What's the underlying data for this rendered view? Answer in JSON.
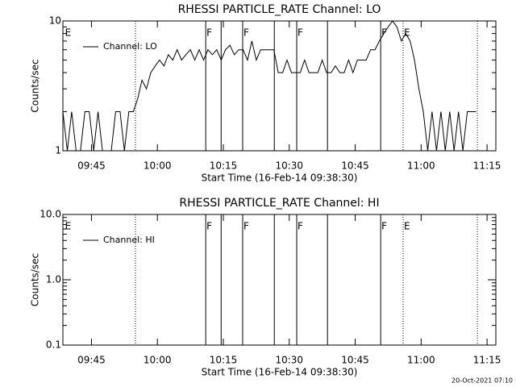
{
  "chart_data": [
    {
      "type": "line",
      "title": "RHESSI PARTICLE_RATE Channel: LO",
      "x_label": "Start Time (16-Feb-14 09:38:30)",
      "y_label": "Counts/sec",
      "log_y": true,
      "legend": "upper left",
      "xlim": [
        0,
        98.5
      ],
      "xticks": [
        {
          "value": 6.5,
          "label": "09:45"
        },
        {
          "value": 21.5,
          "label": "10:00"
        },
        {
          "value": 36.5,
          "label": "10:15"
        },
        {
          "value": 51.5,
          "label": "10:30"
        },
        {
          "value": 66.5,
          "label": "10:45"
        },
        {
          "value": 81.5,
          "label": "11:00"
        },
        {
          "value": 96.5,
          "label": "11:15"
        }
      ],
      "ylim": [
        1,
        10
      ],
      "yticks": [
        1,
        10
      ],
      "yminorticks": [
        2,
        3,
        4,
        5,
        6,
        7,
        8,
        9
      ],
      "lines": [
        {
          "x": 16.5,
          "style": "dotted"
        },
        {
          "x": 32.5,
          "style": "solid"
        },
        {
          "x": 36.0,
          "style": "solid"
        },
        {
          "x": 40.9,
          "style": "solid"
        },
        {
          "x": 48.1,
          "style": "solid"
        },
        {
          "x": 53.2,
          "style": "solid"
        },
        {
          "x": 60.2,
          "style": "solid"
        },
        {
          "x": 72.3,
          "style": "solid"
        },
        {
          "x": 77.4,
          "style": "dotted"
        },
        {
          "x": 94.3,
          "style": "dotted"
        }
      ],
      "flags": [
        {
          "x": 0.3,
          "label": "E"
        },
        {
          "x": 32.5,
          "label": "F"
        },
        {
          "x": 40.9,
          "label": "F"
        },
        {
          "x": 53.2,
          "label": "F"
        },
        {
          "x": 72.3,
          "label": "F"
        },
        {
          "x": 77.4,
          "label": "E"
        }
      ],
      "x": [
        0,
        1,
        2,
        3,
        4,
        5,
        6,
        7,
        8,
        9,
        10,
        11,
        12,
        13,
        14,
        15,
        16,
        17,
        18,
        19,
        20,
        21,
        22,
        23,
        24,
        25,
        26,
        27,
        28,
        29,
        30,
        31,
        32,
        33,
        34,
        35,
        36,
        37,
        38,
        39,
        40,
        41,
        42,
        43,
        44,
        45,
        46,
        47,
        48,
        49,
        50,
        51,
        52,
        53,
        54,
        55,
        56,
        57,
        58,
        59,
        60,
        61,
        62,
        63,
        64,
        65,
        66,
        67,
        68,
        69,
        70,
        71,
        72,
        73,
        74,
        75,
        76,
        77,
        78,
        79,
        80,
        81,
        82,
        83,
        84,
        85,
        86,
        87,
        88,
        89,
        90,
        91,
        92,
        93,
        94
      ],
      "series": [
        {
          "name": "Channel: LO",
          "color": "#000000",
          "values": [
            2,
            1,
            2,
            1,
            1,
            2,
            2,
            1,
            2,
            1,
            1,
            1,
            2,
            2,
            1,
            2,
            2,
            2.5,
            3.5,
            3,
            4,
            4.5,
            5,
            4.5,
            5.5,
            5,
            6,
            5,
            5.5,
            6,
            5,
            6,
            5,
            6,
            5.5,
            6,
            5,
            6,
            6.5,
            5.5,
            6,
            6,
            5,
            7,
            5,
            6,
            6,
            6,
            6,
            4,
            4,
            5,
            4,
            4,
            4,
            5,
            4,
            4,
            4,
            5,
            4,
            4,
            4.5,
            4,
            4,
            5,
            4,
            5,
            5,
            5,
            6,
            6,
            7,
            8,
            9,
            10,
            9,
            7,
            8,
            7,
            5,
            3,
            2,
            1,
            2,
            1,
            2,
            1,
            2,
            1,
            2,
            1,
            2,
            2,
            2
          ]
        }
      ]
    },
    {
      "type": "line",
      "title": "RHESSI PARTICLE_RATE Channel: HI",
      "x_label": "Start Time (16-Feb-14 09:38:30)",
      "y_label": "Counts/sec",
      "log_y": true,
      "legend": "upper left",
      "xlim": [
        0,
        98.5
      ],
      "xticks": [
        {
          "value": 6.5,
          "label": "09:45"
        },
        {
          "value": 21.5,
          "label": "10:00"
        },
        {
          "value": 36.5,
          "label": "10:15"
        },
        {
          "value": 51.5,
          "label": "10:30"
        },
        {
          "value": 66.5,
          "label": "10:45"
        },
        {
          "value": 81.5,
          "label": "11:00"
        },
        {
          "value": 96.5,
          "label": "11:15"
        }
      ],
      "ylim": [
        0.1,
        10
      ],
      "yticks": [
        0.1,
        {
          "value": 1,
          "label": "1.0"
        },
        {
          "value": 10,
          "label": "10.0"
        }
      ],
      "yminorticks": [
        0.2,
        0.3,
        0.4,
        0.5,
        0.6,
        0.7,
        0.8,
        0.9,
        2,
        3,
        4,
        5,
        6,
        7,
        8,
        9
      ],
      "lines": [
        {
          "x": 16.5,
          "style": "dotted"
        },
        {
          "x": 32.5,
          "style": "solid"
        },
        {
          "x": 36.0,
          "style": "solid"
        },
        {
          "x": 40.9,
          "style": "solid"
        },
        {
          "x": 48.1,
          "style": "solid"
        },
        {
          "x": 53.2,
          "style": "solid"
        },
        {
          "x": 60.2,
          "style": "solid"
        },
        {
          "x": 72.3,
          "style": "solid"
        },
        {
          "x": 77.4,
          "style": "dotted"
        },
        {
          "x": 94.3,
          "style": "dotted"
        }
      ],
      "flags": [
        {
          "x": 0.3,
          "label": "E"
        },
        {
          "x": 32.5,
          "label": "F"
        },
        {
          "x": 40.9,
          "label": "F"
        },
        {
          "x": 53.2,
          "label": "F"
        },
        {
          "x": 72.3,
          "label": "F"
        },
        {
          "x": 77.4,
          "label": "E"
        }
      ],
      "series": [
        {
          "name": "Channel: HI",
          "color": "#000000"
        }
      ]
    }
  ],
  "footer": "20-Oct-2021 07:10"
}
